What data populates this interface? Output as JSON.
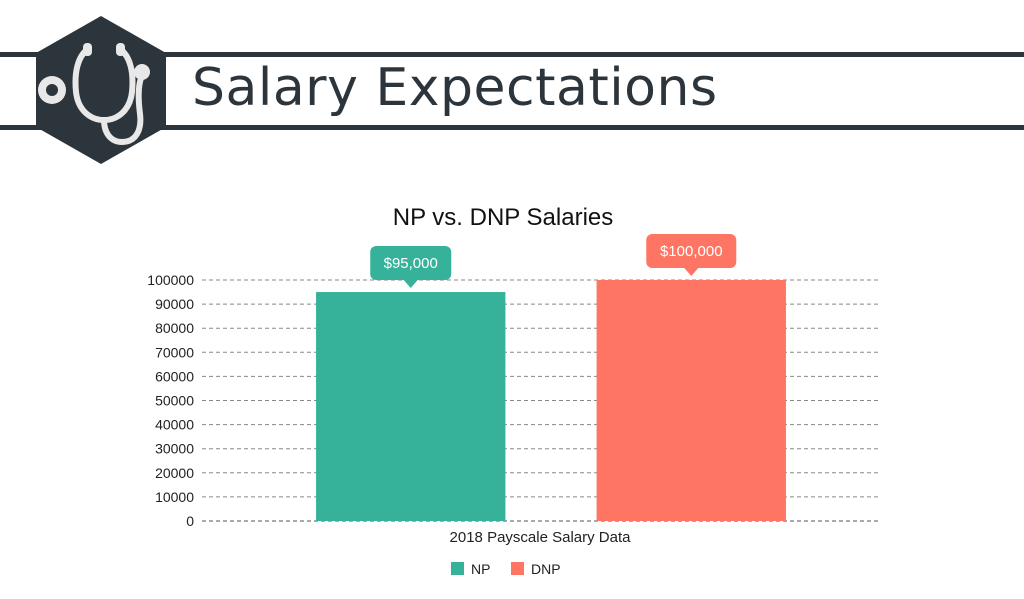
{
  "header": {
    "title": "Salary Expectations",
    "logo_icon": "stethoscope-icon"
  },
  "colors": {
    "banner": "#2d353c",
    "np": "#37b29a",
    "dnp": "#ff7563"
  },
  "chart_data": {
    "type": "bar",
    "title": "NP vs. DNP Salaries",
    "xlabel": "2018 Payscale Salary Data",
    "ylabel": "",
    "ylim": [
      0,
      100000
    ],
    "yticks": [
      0,
      10000,
      20000,
      30000,
      40000,
      50000,
      60000,
      70000,
      80000,
      90000,
      100000
    ],
    "grid": true,
    "legend_position": "bottom",
    "series": [
      {
        "name": "NP",
        "values": [
          95000
        ],
        "label": "$95,000",
        "color": "#37b29a"
      },
      {
        "name": "DNP",
        "values": [
          100000
        ],
        "label": "$100,000",
        "color": "#ff7563"
      }
    ]
  }
}
